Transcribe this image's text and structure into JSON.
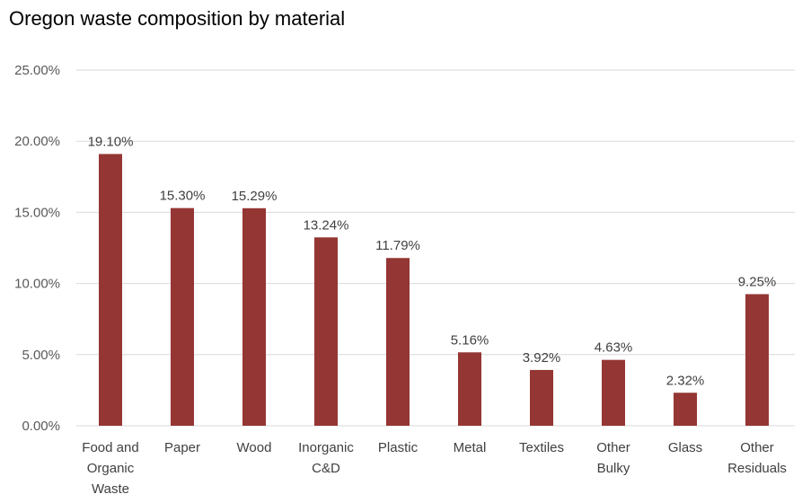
{
  "chart_data": {
    "type": "bar",
    "title": "Oregon waste composition by material",
    "xlabel": "",
    "ylabel": "",
    "categories": [
      [
        "Food and",
        "Organic",
        "Waste"
      ],
      [
        "Paper"
      ],
      [
        "Wood"
      ],
      [
        "Inorganic",
        "C&D"
      ],
      [
        "Plastic"
      ],
      [
        "Metal"
      ],
      [
        "Textiles"
      ],
      [
        "Other",
        "Bulky"
      ],
      [
        "Glass"
      ],
      [
        "Other",
        "Residuals"
      ]
    ],
    "values": [
      19.1,
      15.3,
      15.29,
      13.24,
      11.79,
      5.16,
      3.92,
      4.63,
      2.32,
      9.25
    ],
    "value_labels": [
      "19.10%",
      "15.30%",
      "15.29%",
      "13.24%",
      "11.79%",
      "5.16%",
      "3.92%",
      "4.63%",
      "2.32%",
      "9.25%"
    ],
    "ylim": [
      0,
      25
    ],
    "y_ticks": [
      0,
      5,
      10,
      15,
      20,
      25
    ],
    "y_tick_labels": [
      "0.00%",
      "5.00%",
      "10.00%",
      "15.00%",
      "20.00%",
      "25.00%"
    ],
    "grid": true,
    "legend": "none",
    "bar_color": "#943634"
  }
}
